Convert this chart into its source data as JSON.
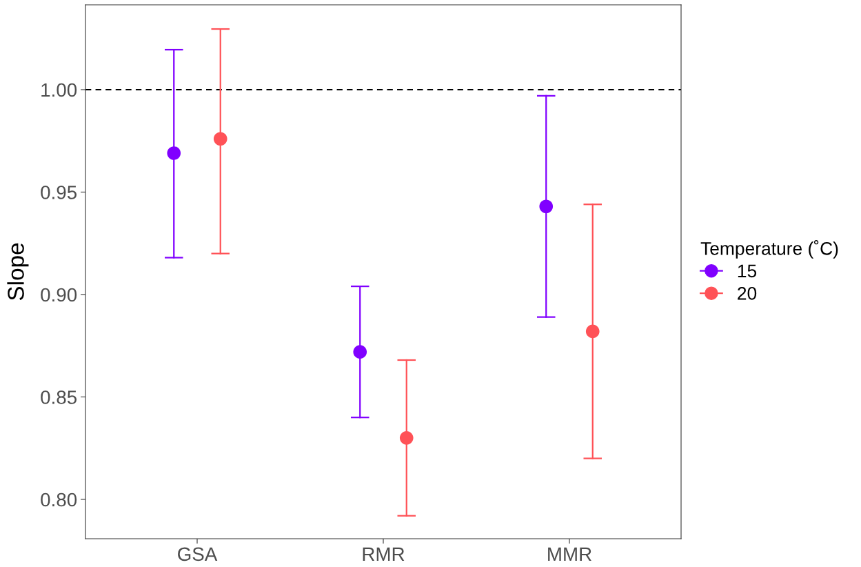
{
  "chart_data": {
    "type": "scatter",
    "ylabel": "Slope",
    "legend_title": "Temperature (˚C)",
    "categories": [
      "GSA",
      "RMR",
      "MMR"
    ],
    "series": [
      {
        "name": "15",
        "color": "#8000ff",
        "values": [
          0.969,
          0.872,
          0.943
        ],
        "errors": [
          [
            0.918,
            1.0195
          ],
          [
            0.84,
            0.904
          ],
          [
            0.889,
            0.997
          ]
        ]
      },
      {
        "name": "20",
        "color": "#ff5257",
        "values": [
          0.976,
          0.83,
          0.882
        ],
        "errors": [
          [
            0.92,
            1.0296
          ],
          [
            0.792,
            0.868
          ],
          [
            0.82,
            0.944
          ]
        ]
      }
    ],
    "ylim": [
      0.7808,
      1.0414
    ],
    "yticks": [
      {
        "value": 0.8,
        "label": "0.80"
      },
      {
        "value": 0.85,
        "label": "0.85"
      },
      {
        "value": 0.9,
        "label": "0.90"
      },
      {
        "value": 0.95,
        "label": "0.95"
      },
      {
        "value": 1.0,
        "label": "1.00"
      }
    ],
    "ref_lines": [
      {
        "axis": "y",
        "value": 1.0,
        "color": "#000000",
        "line_style": "dashed"
      }
    ],
    "grid": false,
    "legend": "right",
    "marker": "circle"
  }
}
